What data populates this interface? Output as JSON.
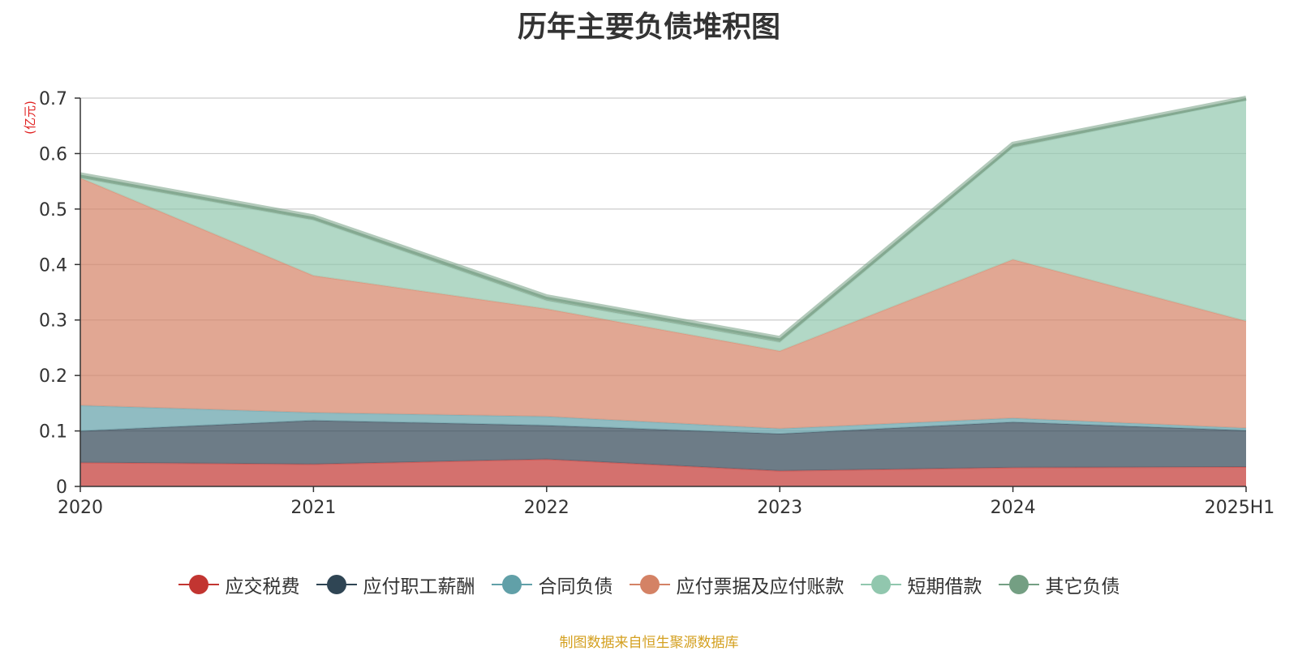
{
  "chart_data": {
    "type": "area",
    "stacked": true,
    "title": "历年主要负债堆积图",
    "unit_label": "(亿元)",
    "categories": [
      "2020",
      "2021",
      "2022",
      "2023",
      "2024",
      "2025H1"
    ],
    "ylim": [
      0,
      0.7
    ],
    "yticks": [
      "0",
      "0.1",
      "0.2",
      "0.3",
      "0.4",
      "0.5",
      "0.6",
      "0.7"
    ],
    "grid": true,
    "legend_position": "bottom",
    "series": [
      {
        "name": "应交税费",
        "color": "#c23531",
        "values": [
          0.043,
          0.04,
          0.049,
          0.028,
          0.034,
          0.035
        ]
      },
      {
        "name": "应付职工薪酬",
        "color": "#2f4554",
        "values": [
          0.057,
          0.079,
          0.061,
          0.067,
          0.082,
          0.066
        ]
      },
      {
        "name": "合同负债",
        "color": "#61a0a8",
        "values": [
          0.046,
          0.014,
          0.016,
          0.009,
          0.007,
          0.004
        ]
      },
      {
        "name": "应付票据及应付账款",
        "color": "#d48265",
        "values": [
          0.41,
          0.247,
          0.194,
          0.14,
          0.286,
          0.193
        ]
      },
      {
        "name": "短期借款",
        "color": "#91c7ae",
        "values": [
          0.0,
          0.1,
          0.015,
          0.016,
          0.202,
          0.398
        ]
      },
      {
        "name": "其它负债",
        "color": "#749f83",
        "values": [
          0.006,
          0.006,
          0.007,
          0.007,
          0.006,
          0.004
        ]
      }
    ]
  },
  "footer": {
    "source_note": "制图数据来自恒生聚源数据库"
  }
}
